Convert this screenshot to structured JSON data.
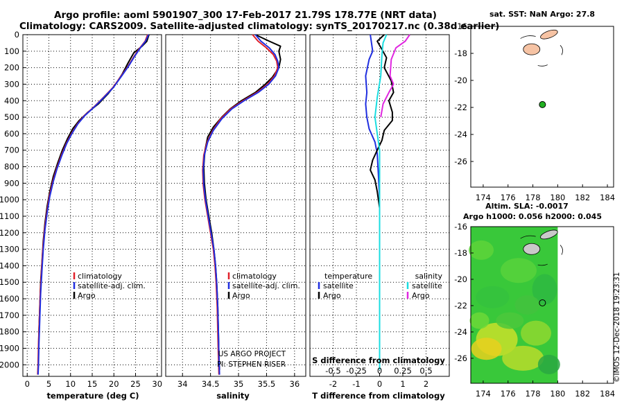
{
  "header": {
    "title_line1": "Argo profile: aoml 5901907_300 17-Feb-2017 21.79S 178.77E (NRT data)",
    "title_line2": "Climatology: CARS2009. Satellite-adjusted climatology: synTS_20170217.nc (0.38d earlier)"
  },
  "credits": {
    "project": "US ARGO PROJECT",
    "pi": "PI: STEPHEN RISER",
    "stamp": "©IMOS 12-Dec-2018 19:23:31"
  },
  "colors": {
    "argo": "#000000",
    "climatology": "#e0202a",
    "satellite": "#1f2ee0",
    "sal_satellite": "#19dde0",
    "sal_argo": "#e027e0",
    "float_marker": "#22b022",
    "land": "#f6c3a4"
  },
  "chart_data": [
    {
      "id": "temperature",
      "type": "line",
      "xlabel": "temperature (deg C)",
      "ylabel": "",
      "xlim": [
        -1,
        31
      ],
      "ylim": [
        2070,
        0
      ],
      "xticks": [
        0,
        5,
        10,
        15,
        20,
        25,
        30
      ],
      "yticks": [
        0,
        100,
        200,
        300,
        400,
        500,
        600,
        700,
        800,
        900,
        1000,
        1100,
        1200,
        1300,
        1400,
        1500,
        1600,
        1700,
        1800,
        1900,
        2000
      ],
      "legend": [
        "climatology",
        "satellite-adj. clim.",
        "Argo"
      ],
      "series": [
        {
          "name": "Argo",
          "points": [
            [
              28.1,
              0
            ],
            [
              27.6,
              40
            ],
            [
              26.5,
              70
            ],
            [
              24.6,
              110
            ],
            [
              23.3,
              170
            ],
            [
              21.9,
              240
            ],
            [
              20.4,
              300
            ],
            [
              18.6,
              360
            ],
            [
              16.4,
              420
            ],
            [
              14.0,
              470
            ],
            [
              12.0,
              520
            ],
            [
              10.5,
              570
            ],
            [
              9.3,
              630
            ],
            [
              8.1,
              700
            ],
            [
              7.0,
              780
            ],
            [
              6.0,
              860
            ],
            [
              5.2,
              950
            ],
            [
              4.6,
              1040
            ],
            [
              4.1,
              1140
            ],
            [
              3.7,
              1250
            ],
            [
              3.4,
              1380
            ],
            [
              3.1,
              1500
            ],
            [
              2.9,
              1650
            ],
            [
              2.7,
              1800
            ],
            [
              2.6,
              1950
            ],
            [
              2.5,
              2030
            ]
          ]
        },
        {
          "name": "climatology",
          "points": [
            [
              27.8,
              0
            ],
            [
              27.2,
              40
            ],
            [
              26.0,
              80
            ],
            [
              24.7,
              130
            ],
            [
              23.3,
              190
            ],
            [
              21.7,
              250
            ],
            [
              19.8,
              320
            ],
            [
              17.6,
              380
            ],
            [
              15.3,
              440
            ],
            [
              13.2,
              490
            ],
            [
              11.6,
              540
            ],
            [
              10.2,
              600
            ],
            [
              9.0,
              660
            ],
            [
              7.9,
              730
            ],
            [
              6.8,
              810
            ],
            [
              5.9,
              890
            ],
            [
              5.1,
              980
            ],
            [
              4.5,
              1080
            ],
            [
              4.0,
              1180
            ],
            [
              3.6,
              1300
            ],
            [
              3.3,
              1430
            ],
            [
              3.0,
              1570
            ],
            [
              2.8,
              1720
            ],
            [
              2.6,
              1880
            ],
            [
              2.5,
              2000
            ],
            [
              2.4,
              2060
            ]
          ]
        },
        {
          "name": "satellite-adj. clim.",
          "points": [
            [
              28.0,
              0
            ],
            [
              27.3,
              40
            ],
            [
              26.1,
              80
            ],
            [
              24.8,
              130
            ],
            [
              23.4,
              190
            ],
            [
              21.8,
              250
            ],
            [
              19.9,
              320
            ],
            [
              17.7,
              380
            ],
            [
              15.4,
              440
            ],
            [
              13.3,
              490
            ],
            [
              11.7,
              540
            ],
            [
              10.3,
              600
            ],
            [
              9.1,
              660
            ],
            [
              8.0,
              730
            ],
            [
              6.9,
              810
            ],
            [
              6.0,
              890
            ],
            [
              5.2,
              980
            ],
            [
              4.6,
              1080
            ],
            [
              4.1,
              1180
            ],
            [
              3.7,
              1300
            ],
            [
              3.4,
              1430
            ],
            [
              3.1,
              1570
            ],
            [
              2.9,
              1720
            ],
            [
              2.7,
              1880
            ],
            [
              2.6,
              2000
            ],
            [
              2.5,
              2060
            ]
          ]
        }
      ]
    },
    {
      "id": "salinity",
      "type": "line",
      "xlabel": "salinity",
      "ylabel": "",
      "xlim": [
        33.7,
        36.2
      ],
      "ylim": [
        2070,
        0
      ],
      "xticks": [
        34,
        34.5,
        35,
        35.5,
        36
      ],
      "legend": [
        "climatology",
        "satellite-adj. clim.",
        "Argo"
      ],
      "series": [
        {
          "name": "Argo",
          "points": [
            [
              35.3,
              0
            ],
            [
              35.55,
              40
            ],
            [
              35.75,
              70
            ],
            [
              35.72,
              100
            ],
            [
              35.75,
              150
            ],
            [
              35.72,
              200
            ],
            [
              35.6,
              260
            ],
            [
              35.48,
              300
            ],
            [
              35.3,
              350
            ],
            [
              35.05,
              400
            ],
            [
              34.85,
              450
            ],
            [
              34.7,
              500
            ],
            [
              34.55,
              560
            ],
            [
              34.45,
              620
            ],
            [
              34.4,
              700
            ],
            [
              34.38,
              800
            ],
            [
              34.39,
              900
            ],
            [
              34.42,
              1000
            ],
            [
              34.47,
              1100
            ],
            [
              34.52,
              1200
            ],
            [
              34.56,
              1300
            ],
            [
              34.59,
              1400
            ],
            [
              34.61,
              1500
            ],
            [
              34.63,
              1650
            ],
            [
              34.64,
              1800
            ],
            [
              34.65,
              1950
            ],
            [
              34.66,
              2030
            ]
          ]
        },
        {
          "name": "climatology",
          "points": [
            [
              35.25,
              0
            ],
            [
              35.35,
              40
            ],
            [
              35.5,
              80
            ],
            [
              35.62,
              120
            ],
            [
              35.68,
              160
            ],
            [
              35.7,
              200
            ],
            [
              35.64,
              250
            ],
            [
              35.52,
              300
            ],
            [
              35.33,
              350
            ],
            [
              35.08,
              400
            ],
            [
              34.86,
              450
            ],
            [
              34.68,
              510
            ],
            [
              34.54,
              580
            ],
            [
              34.44,
              650
            ],
            [
              34.38,
              730
            ],
            [
              34.36,
              820
            ],
            [
              34.37,
              910
            ],
            [
              34.4,
              1000
            ],
            [
              34.45,
              1100
            ],
            [
              34.5,
              1200
            ],
            [
              34.55,
              1300
            ],
            [
              34.58,
              1400
            ],
            [
              34.6,
              1500
            ],
            [
              34.62,
              1650
            ],
            [
              34.63,
              1800
            ],
            [
              34.64,
              1950
            ],
            [
              34.65,
              2060
            ]
          ]
        },
        {
          "name": "satellite-adj. clim.",
          "points": [
            [
              35.3,
              0
            ],
            [
              35.4,
              40
            ],
            [
              35.55,
              80
            ],
            [
              35.65,
              120
            ],
            [
              35.7,
              160
            ],
            [
              35.72,
              200
            ],
            [
              35.66,
              250
            ],
            [
              35.54,
              300
            ],
            [
              35.35,
              350
            ],
            [
              35.1,
              400
            ],
            [
              34.88,
              450
            ],
            [
              34.7,
              510
            ],
            [
              34.55,
              580
            ],
            [
              34.45,
              650
            ],
            [
              34.39,
              730
            ],
            [
              34.37,
              820
            ],
            [
              34.38,
              910
            ],
            [
              34.41,
              1000
            ],
            [
              34.46,
              1100
            ],
            [
              34.51,
              1200
            ],
            [
              34.56,
              1300
            ],
            [
              34.59,
              1400
            ],
            [
              34.61,
              1500
            ],
            [
              34.63,
              1650
            ],
            [
              34.64,
              1800
            ],
            [
              34.65,
              1950
            ],
            [
              34.66,
              2060
            ]
          ]
        }
      ]
    },
    {
      "id": "difference",
      "type": "line",
      "xlabel": "T difference from climatology",
      "secondary_xlabel": "S difference from climatology",
      "xlim": [
        -3,
        3
      ],
      "ylim": [
        2070,
        0
      ],
      "xticks": [
        -2,
        -1,
        0,
        1,
        2
      ],
      "secondary_xticks": [
        "-0.5",
        "-0.25",
        "0",
        "0.25",
        "0.5"
      ],
      "secondary_xtick_values": [
        -2,
        -1,
        0,
        1,
        2
      ],
      "legend_left_title": "temperature",
      "legend_right_title": "salinity",
      "legend_left": [
        "satellite",
        "Argo"
      ],
      "legend_right": [
        "satellite",
        "Argo"
      ],
      "series": [
        {
          "name": "T satellite",
          "color_key": "satellite",
          "points": [
            [
              -0.4,
              0
            ],
            [
              -0.35,
              50
            ],
            [
              -0.3,
              100
            ],
            [
              -0.45,
              150
            ],
            [
              -0.6,
              250
            ],
            [
              -0.55,
              350
            ],
            [
              -0.6,
              420
            ],
            [
              -0.55,
              500
            ],
            [
              -0.45,
              570
            ],
            [
              -0.2,
              650
            ],
            [
              -0.1,
              720
            ],
            [
              -0.05,
              850
            ],
            [
              0,
              1000
            ],
            [
              0,
              1500
            ],
            [
              0,
              2030
            ]
          ]
        },
        {
          "name": "T Argo",
          "color_key": "argo",
          "points": [
            [
              0.2,
              0
            ],
            [
              -0.1,
              40
            ],
            [
              0.1,
              90
            ],
            [
              0.3,
              140
            ],
            [
              0.2,
              200
            ],
            [
              0.5,
              280
            ],
            [
              0.6,
              350
            ],
            [
              0.4,
              400
            ],
            [
              0.55,
              470
            ],
            [
              0.55,
              520
            ],
            [
              0.2,
              580
            ],
            [
              0.1,
              640
            ],
            [
              -0.1,
              700
            ],
            [
              -0.3,
              760
            ],
            [
              -0.4,
              820
            ],
            [
              -0.2,
              880
            ],
            [
              -0.1,
              950
            ],
            [
              0,
              1050
            ],
            [
              0,
              1150
            ],
            [
              0,
              1300
            ],
            [
              0,
              1500
            ],
            [
              0,
              2030
            ]
          ]
        },
        {
          "name": "S satellite",
          "color_key": "sal_satellite",
          "points": [
            [
              0.3,
              0
            ],
            [
              0.15,
              50
            ],
            [
              0.1,
              120
            ],
            [
              0.05,
              250
            ],
            [
              -0.1,
              380
            ],
            [
              -0.2,
              500
            ],
            [
              -0.1,
              600
            ],
            [
              0,
              700
            ],
            [
              0,
              1000
            ],
            [
              0,
              2030
            ]
          ]
        },
        {
          "name": "S Argo",
          "color_key": "sal_argo",
          "points": [
            [
              1.3,
              0
            ],
            [
              1.1,
              40
            ],
            [
              0.7,
              80
            ],
            [
              0.5,
              150
            ],
            [
              0.45,
              250
            ],
            [
              0.6,
              300
            ],
            [
              0.4,
              350
            ],
            [
              0.15,
              420
            ],
            [
              0.05,
              500
            ]
          ]
        }
      ]
    },
    {
      "id": "sst_map",
      "type": "scatter",
      "title": "sat. SST: NaN Argo: 27.8",
      "xlim": [
        173,
        184.5
      ],
      "ylim": [
        -27.9,
        -16
      ],
      "xticks": [
        174,
        176,
        178,
        180,
        182,
        184
      ],
      "yticks": [
        -16,
        -18,
        -20,
        -22,
        -24,
        -26
      ],
      "float_position": [
        178.77,
        -21.79
      ]
    },
    {
      "id": "sla_map",
      "type": "heatmap",
      "title_line1": "Altim. SLA: -0.0017",
      "title_line2": "Argo h1000: 0.056 h2000: 0.045",
      "xlim": [
        173,
        184.5
      ],
      "ylim": [
        -27.9,
        -16
      ],
      "xticks": [
        174,
        176,
        178,
        180,
        182,
        184
      ],
      "yticks": [
        -16,
        -18,
        -20,
        -22,
        -24,
        -26
      ],
      "data_xlim": [
        173,
        180
      ],
      "float_position": [
        178.77,
        -21.79
      ]
    }
  ]
}
